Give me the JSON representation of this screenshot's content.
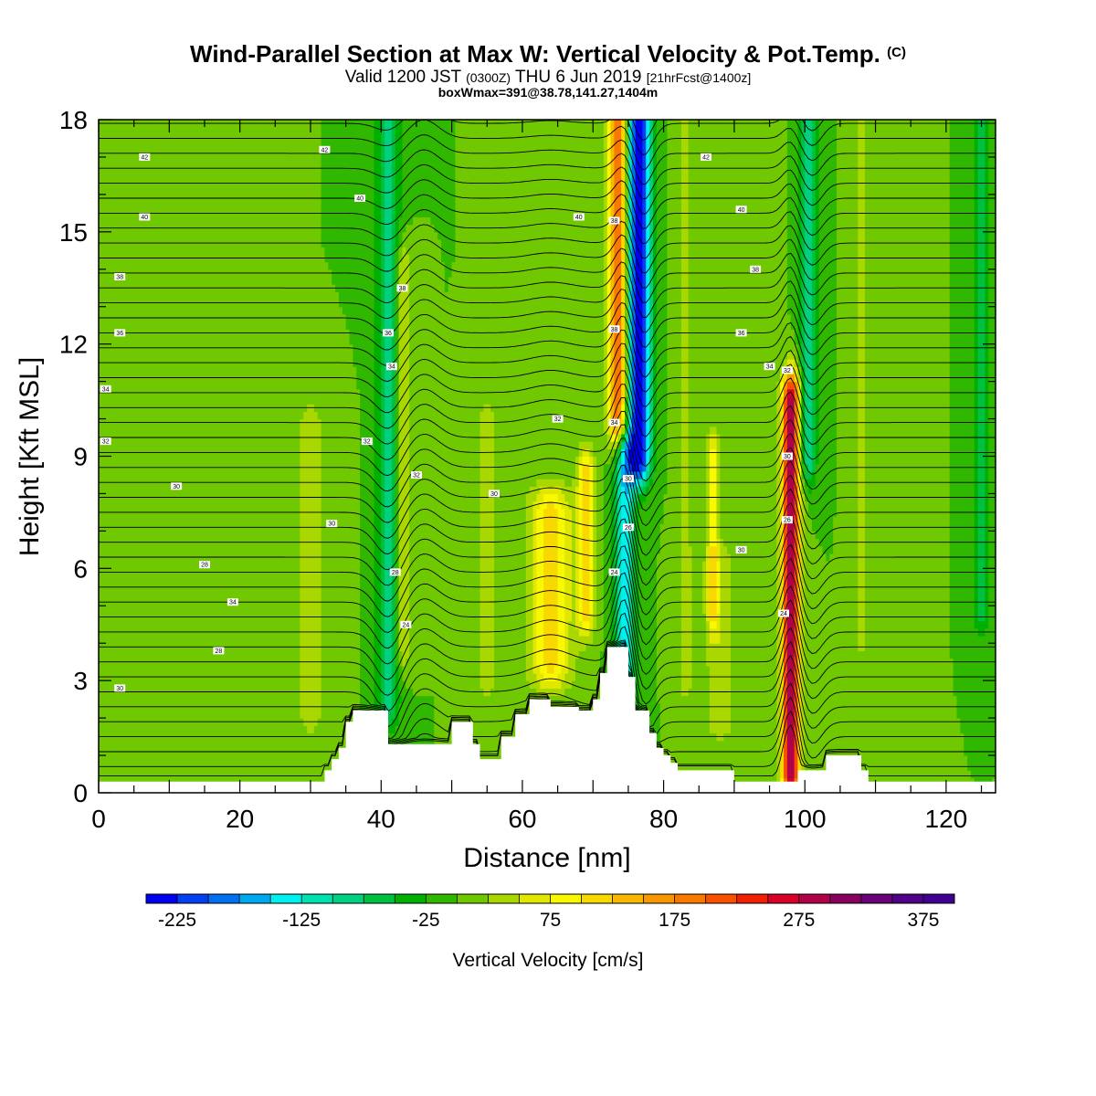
{
  "title": {
    "main": "Wind-Parallel Section at Max W: Vertical Velocity & Pot.Temp.",
    "copyright": "(C)",
    "valid_prefix": "Valid 1200 JST",
    "valid_utc": "(0300Z)",
    "valid_date": "THU 6 Jun 2019",
    "fcst": "[21hrFcst@1400z]",
    "boxwmax": "boxWmax=391@38.78,141.27,1404m"
  },
  "chart_data": {
    "type": "heatmap",
    "xlabel": "Distance [nm]",
    "ylabel": "Height [Kft MSL]",
    "xlim": [
      0,
      127
    ],
    "ylim": [
      0,
      18
    ],
    "x_ticks": [
      0,
      20,
      40,
      60,
      80,
      100,
      120
    ],
    "y_ticks": [
      0,
      3,
      6,
      9,
      12,
      15,
      18
    ],
    "colorbar": {
      "label": "Vertical Velocity [cm/s]",
      "min": -250,
      "max": 400,
      "step": 25,
      "tick_labels": [
        "-225",
        "-125",
        "-25",
        "75",
        "175",
        "275",
        "375"
      ],
      "tick_values": [
        -225,
        -125,
        -25,
        75,
        175,
        275,
        375
      ],
      "colors": [
        "#0000f0",
        "#0040f0",
        "#0070f0",
        "#00a8f0",
        "#00f0f0",
        "#00e0b0",
        "#00d080",
        "#00c040",
        "#00b000",
        "#30b800",
        "#70c800",
        "#a8d800",
        "#e0e800",
        "#f8f800",
        "#f8d800",
        "#f8b800",
        "#f89800",
        "#f87800",
        "#f85000",
        "#f02000",
        "#d80028",
        "#b00048",
        "#880060",
        "#680078",
        "#500088",
        "#400090"
      ]
    },
    "background_w": 0,
    "w_features": [
      {
        "x": 76.5,
        "x_half_width": 1.6,
        "y_bottom": 9,
        "y_top": 18,
        "w": -250
      },
      {
        "x": 74.5,
        "x_half_width": 1.4,
        "y_bottom": 2,
        "y_top": 9,
        "w": -140
      },
      {
        "x": 73.5,
        "x_half_width": 1.3,
        "y_bottom": 10,
        "y_top": 18,
        "w": 200
      },
      {
        "x": 98,
        "x_half_width": 1.2,
        "y_bottom": 0.5,
        "y_top": 10.5,
        "w": 300
      },
      {
        "x": 100.5,
        "x_half_width": 1.1,
        "y_bottom": 9,
        "y_top": 18,
        "w": -100
      },
      {
        "x": 41,
        "x_half_width": 1.6,
        "y_bottom": 2.5,
        "y_top": 18,
        "w": -90
      },
      {
        "x": 43,
        "x_half_width": 1.2,
        "y_bottom": 4,
        "y_top": 14,
        "w": 60
      },
      {
        "x": 64,
        "x_half_width": 3,
        "y_bottom": 3.5,
        "y_top": 7.5,
        "w": 110
      },
      {
        "x": 69,
        "x_half_width": 1.2,
        "y_bottom": 5,
        "y_top": 8.5,
        "w": 120
      },
      {
        "x": 87,
        "x_half_width": 0.8,
        "y_bottom": 5,
        "y_top": 9,
        "w": 90
      },
      {
        "x": 88,
        "x_half_width": 2.5,
        "y_bottom": 2,
        "y_top": 6,
        "w": 40
      },
      {
        "x": 94,
        "x_half_width": 1.5,
        "y_bottom": 0.5,
        "y_top": 18,
        "w": 25
      },
      {
        "x": 115,
        "x_half_width": 1.5,
        "y_bottom": 0.5,
        "y_top": 18,
        "w": 25
      },
      {
        "x": 125,
        "x_half_width": 1.2,
        "y_bottom": 5,
        "y_top": 18,
        "w": -70
      },
      {
        "x": 5,
        "x_half_width": 3,
        "y_bottom": 1,
        "y_top": 8,
        "w": 15
      },
      {
        "x": 20,
        "x_half_width": 2,
        "y_bottom": 2,
        "y_top": 9,
        "w": 20
      },
      {
        "x": 30,
        "x_half_width": 3,
        "y_bottom": 2,
        "y_top": 10,
        "w": 30
      },
      {
        "x": 55,
        "x_half_width": 2,
        "y_bottom": 3,
        "y_top": 10,
        "w": 30
      },
      {
        "x": 83,
        "x_half_width": 1.2,
        "y_bottom": 3,
        "y_top": 18,
        "w": 35
      },
      {
        "x": 108,
        "x_half_width": 1,
        "y_bottom": 4,
        "y_top": 18,
        "w": 30
      }
    ],
    "terrain": [
      [
        0,
        0.3
      ],
      [
        31,
        0.3
      ],
      [
        32,
        0.6
      ],
      [
        33,
        0.9
      ],
      [
        34,
        1.2
      ],
      [
        35,
        1.9
      ],
      [
        36,
        2.2
      ],
      [
        40,
        2.2
      ],
      [
        41,
        1.3
      ],
      [
        49,
        1.3
      ],
      [
        50,
        1.9
      ],
      [
        52,
        1.9
      ],
      [
        53,
        1.3
      ],
      [
        54,
        0.9
      ],
      [
        55,
        0.9
      ],
      [
        56,
        0.9
      ],
      [
        57,
        1.5
      ],
      [
        59,
        2.1
      ],
      [
        61,
        2.5
      ],
      [
        63,
        2.5
      ],
      [
        64,
        2.3
      ],
      [
        67,
        2.3
      ],
      [
        68,
        2.2
      ],
      [
        70,
        2.5
      ],
      [
        71,
        3.2
      ],
      [
        72,
        3.9
      ],
      [
        74,
        3.9
      ],
      [
        75,
        3.1
      ],
      [
        76,
        2.2
      ],
      [
        77,
        2.2
      ],
      [
        78,
        1.6
      ],
      [
        79,
        1.2
      ],
      [
        80,
        1.0
      ],
      [
        81,
        0.8
      ],
      [
        82,
        0.6
      ],
      [
        89,
        0.6
      ],
      [
        90,
        0.3
      ],
      [
        98,
        0.3
      ],
      [
        99,
        0.6
      ],
      [
        102,
        0.6
      ],
      [
        103,
        1.0
      ],
      [
        107,
        1.0
      ],
      [
        108,
        0.6
      ],
      [
        109,
        0.3
      ],
      [
        127,
        0.3
      ]
    ],
    "contour_labels": [
      {
        "x": 6.5,
        "y": 17.0,
        "text": "42"
      },
      {
        "x": 32,
        "y": 17.2,
        "text": "42"
      },
      {
        "x": 6.5,
        "y": 15.4,
        "text": "40"
      },
      {
        "x": 37,
        "y": 15.9,
        "text": "40"
      },
      {
        "x": 3,
        "y": 13.8,
        "text": "38"
      },
      {
        "x": 43,
        "y": 13.5,
        "text": "38"
      },
      {
        "x": 3,
        "y": 12.3,
        "text": "36"
      },
      {
        "x": 41,
        "y": 12.3,
        "text": "36"
      },
      {
        "x": 1,
        "y": 10.8,
        "text": "34"
      },
      {
        "x": 41.5,
        "y": 11.4,
        "text": "34"
      },
      {
        "x": 1,
        "y": 9.4,
        "text": "32"
      },
      {
        "x": 38,
        "y": 9.4,
        "text": "32"
      },
      {
        "x": 11,
        "y": 8.2,
        "text": "30"
      },
      {
        "x": 45,
        "y": 8.5,
        "text": "32"
      },
      {
        "x": 56,
        "y": 8.0,
        "text": "30"
      },
      {
        "x": 65,
        "y": 10.0,
        "text": "32"
      },
      {
        "x": 73,
        "y": 9.9,
        "text": "34"
      },
      {
        "x": 33,
        "y": 7.2,
        "text": "30"
      },
      {
        "x": 15,
        "y": 6.1,
        "text": "28"
      },
      {
        "x": 19,
        "y": 5.1,
        "text": "34"
      },
      {
        "x": 42,
        "y": 5.9,
        "text": "28"
      },
      {
        "x": 43.5,
        "y": 4.5,
        "text": "24"
      },
      {
        "x": 17,
        "y": 3.8,
        "text": "28"
      },
      {
        "x": 3,
        "y": 2.8,
        "text": "30"
      },
      {
        "x": 68,
        "y": 15.4,
        "text": "40"
      },
      {
        "x": 73,
        "y": 15.3,
        "text": "38"
      },
      {
        "x": 73,
        "y": 12.4,
        "text": "38"
      },
      {
        "x": 75,
        "y": 8.4,
        "text": "30"
      },
      {
        "x": 75,
        "y": 7.1,
        "text": "26"
      },
      {
        "x": 73,
        "y": 5.9,
        "text": "24"
      },
      {
        "x": 86,
        "y": 17.0,
        "text": "42"
      },
      {
        "x": 91,
        "y": 15.6,
        "text": "40"
      },
      {
        "x": 93,
        "y": 14.0,
        "text": "38"
      },
      {
        "x": 91,
        "y": 12.3,
        "text": "36"
      },
      {
        "x": 95,
        "y": 11.4,
        "text": "34"
      },
      {
        "x": 97.5,
        "y": 11.3,
        "text": "32"
      },
      {
        "x": 97.5,
        "y": 9.0,
        "text": "30"
      },
      {
        "x": 97.5,
        "y": 7.3,
        "text": "26"
      },
      {
        "x": 91,
        "y": 6.5,
        "text": "30"
      },
      {
        "x": 97,
        "y": 4.8,
        "text": "24"
      }
    ]
  }
}
